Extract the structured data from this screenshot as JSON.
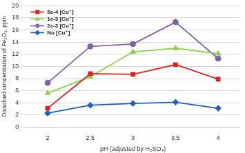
{
  "chart_data": {
    "type": "line",
    "x_label": "pH (adjusted by H₂SO₄)",
    "y_label": "Dissolved concentration of Fe₂O₃, ppm",
    "categories": [
      "2",
      "2.5",
      "3",
      "3.5",
      "4"
    ],
    "series": [
      {
        "name": "5e-4 [Cu⁺]",
        "color": "#e3211c",
        "marker": "square",
        "values": [
          3.1,
          8.8,
          8.7,
          10.3,
          7.9
        ]
      },
      {
        "name": "1e-3 [Cu⁺]",
        "color": "#92d050",
        "marker": "triangle",
        "values": [
          5.6,
          8.3,
          12.4,
          13.0,
          12.1
        ]
      },
      {
        "name": "2e-3 [Cu⁺]",
        "color": "#8064a2",
        "marker": "circle",
        "values": [
          7.3,
          13.3,
          13.7,
          17.3,
          11.3
        ]
      },
      {
        "name": "No [Cu⁺]",
        "color": "#1f5fbf",
        "marker": "diamond",
        "values": [
          2.3,
          3.6,
          3.9,
          4.1,
          3.1
        ]
      }
    ],
    "ylim": [
      0,
      20
    ],
    "yticks": [
      0,
      2,
      4,
      6,
      8,
      10,
      12,
      14,
      16,
      18,
      20
    ],
    "grid": true,
    "legend": "top-left"
  }
}
